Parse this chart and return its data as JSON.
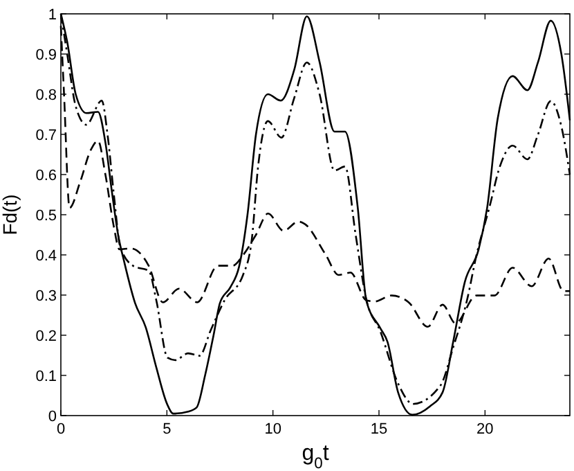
{
  "chart_data": {
    "type": "line",
    "xlabel": "g$_{0}$t",
    "ylabel": "Fd(t)",
    "xlim": [
      0,
      24
    ],
    "ylim": [
      0,
      1
    ],
    "xticks": [
      0,
      5,
      10,
      15,
      20
    ],
    "yticks": [
      0,
      0.1,
      0.2,
      0.3,
      0.4,
      0.5,
      0.6,
      0.7,
      0.8,
      0.9,
      1
    ],
    "grid": false,
    "marker": "none",
    "series": [
      {
        "color": "#000000",
        "line_style": "solid",
        "x": [
          0,
          0.3,
          0.7,
          1.2,
          1.75,
          2.1,
          2.4,
          2.7,
          3.0,
          3.5,
          4.0,
          4.5,
          5.0,
          5.3,
          6.0,
          6.4,
          6.8,
          7.2,
          7.5,
          8.0,
          8.4,
          8.8,
          9.2,
          9.76,
          10.37,
          11.0,
          11.6,
          12.2,
          12.9,
          13.4,
          14.0,
          14.4,
          15.06,
          15.4,
          15.9,
          16.57,
          17.4,
          18.0,
          18.5,
          19.05,
          19.7,
          20.1,
          20.6,
          21.3,
          22.0,
          22.5,
          23.1,
          23.6,
          24
        ],
        "values": [
          1,
          0.93,
          0.8,
          0.753,
          0.756,
          0.68,
          0.56,
          0.45,
          0.38,
          0.28,
          0.22,
          0.12,
          0.03,
          0.005,
          0.01,
          0.02,
          0.1,
          0.2,
          0.28,
          0.32,
          0.37,
          0.5,
          0.7,
          0.8,
          0.784,
          0.86,
          0.994,
          0.88,
          0.707,
          0.707,
          0.517,
          0.287,
          0.218,
          0.184,
          0.058,
          0.002,
          0.023,
          0.058,
          0.184,
          0.333,
          0.414,
          0.517,
          0.74,
          0.845,
          0.81,
          0.88,
          0.983,
          0.9,
          0.735
        ]
      },
      {
        "color": "#000000",
        "line_style": "dashdot",
        "x": [
          0,
          0.3,
          0.7,
          1.2,
          1.93,
          2.2,
          2.5,
          2.8,
          3.4,
          4.15,
          4.5,
          5.03,
          5.4,
          6.0,
          6.54,
          7.07,
          7.72,
          8.59,
          9.0,
          9.3,
          9.76,
          10.4,
          11.0,
          11.6,
          12.2,
          12.9,
          13.4,
          13.9,
          14.4,
          15.06,
          15.9,
          16.6,
          17.9,
          18.5,
          19.15,
          19.6,
          20.2,
          20.7,
          21.3,
          22.0,
          22.5,
          23.1,
          23.6,
          24
        ],
        "values": [
          1,
          0.9,
          0.77,
          0.724,
          0.784,
          0.7,
          0.55,
          0.42,
          0.373,
          0.36,
          0.287,
          0.144,
          0.138,
          0.155,
          0.149,
          0.213,
          0.287,
          0.35,
          0.437,
          0.62,
          0.733,
          0.692,
          0.79,
          0.879,
          0.8,
          0.61,
          0.62,
          0.45,
          0.29,
          0.21,
          0.08,
          0.029,
          0.075,
          0.17,
          0.287,
          0.4,
          0.517,
          0.62,
          0.672,
          0.638,
          0.7,
          0.783,
          0.72,
          0.6
        ]
      },
      {
        "color": "#000000",
        "line_style": "dashed",
        "x": [
          0,
          0.15,
          0.41,
          0.9,
          1.4,
          1.75,
          2.1,
          2.5,
          2.76,
          3.3,
          4.14,
          4.81,
          5.57,
          6.43,
          7.4,
          8.1,
          8.6,
          9.2,
          9.77,
          10.5,
          11.2,
          11.5,
          12.47,
          13.1,
          13.66,
          14.4,
          14.8,
          15.6,
          16.4,
          17.3,
          18.0,
          18.6,
          19.6,
          20.45,
          21.3,
          22.2,
          23.0,
          23.7,
          24
        ],
        "values": [
          0.97,
          0.8,
          0.517,
          0.58,
          0.66,
          0.684,
          0.6,
          0.47,
          0.414,
          0.416,
          0.373,
          0.282,
          0.316,
          0.282,
          0.373,
          0.373,
          0.4,
          0.45,
          0.503,
          0.46,
          0.483,
          0.477,
          0.402,
          0.35,
          0.356,
          0.287,
          0.284,
          0.299,
          0.282,
          0.221,
          0.276,
          0.23,
          0.299,
          0.299,
          0.368,
          0.322,
          0.391,
          0.31,
          0.31
        ]
      }
    ]
  }
}
